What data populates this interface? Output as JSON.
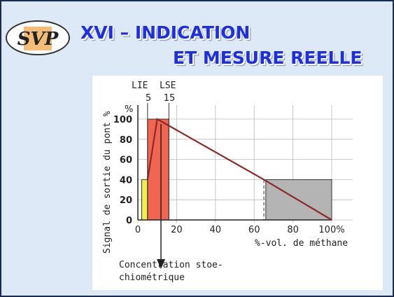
{
  "slide": {
    "logo": "SVP",
    "title_lines": [
      "XVI – INDICATION",
      "ET MESURE REELLE"
    ]
  },
  "chart_data": {
    "type": "line",
    "ylabel": "Signal de sortie du pont %",
    "xlabel": "%-vol. de méthane",
    "yunit": "%",
    "annotations": [
      "LIE",
      "LSE",
      "5",
      "15",
      "Concentration stoe-",
      "chiométrique"
    ],
    "x": [
      5,
      10,
      65,
      100
    ],
    "series": [
      {
        "color": "#8a2a2a",
        "values": [
          40,
          100,
          40,
          0
        ]
      }
    ],
    "regions": [
      {
        "x": [
          2,
          5
        ],
        "value": 40,
        "color": "#f2ee50"
      },
      {
        "x": [
          5,
          16
        ],
        "value": 100,
        "color": "#f26550"
      },
      {
        "x": [
          66,
          100
        ],
        "value": 40,
        "color": "#b4b4b4"
      }
    ],
    "xlim": [
      0,
      100
    ],
    "ylim": [
      0,
      100
    ],
    "xticks": [
      0,
      20,
      40,
      60,
      80,
      {
        "value": 100,
        "label": "100%"
      }
    ],
    "yticks": [
      0,
      20,
      40,
      60,
      80,
      100
    ],
    "grid": true
  }
}
